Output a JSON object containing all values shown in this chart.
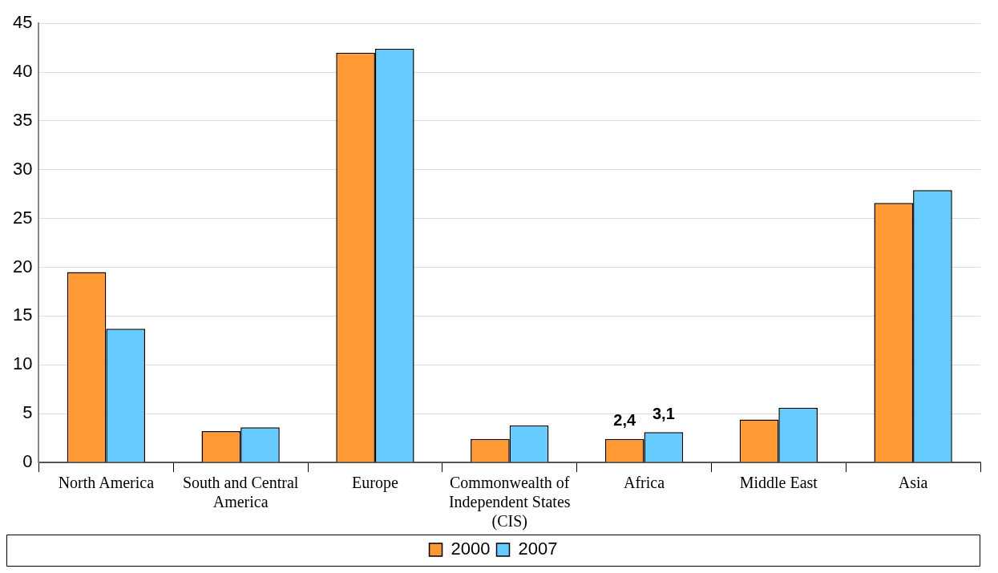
{
  "chart_data": {
    "type": "bar",
    "categories": [
      "North America",
      "South and Central America",
      "Europe",
      "Commonwealth of Independent States (CIS)",
      "Africa",
      "Middle East",
      "Asia"
    ],
    "series": [
      {
        "name": "2000",
        "color": "#ff9933",
        "values": [
          19.5,
          3.2,
          42.0,
          2.4,
          2.4,
          4.4,
          26.6
        ],
        "value_labels": [
          null,
          null,
          null,
          null,
          "2,4",
          null,
          null
        ]
      },
      {
        "name": "2007",
        "color": "#66ccff",
        "values": [
          13.7,
          3.6,
          42.4,
          3.8,
          3.1,
          5.6,
          27.9
        ],
        "value_labels": [
          null,
          null,
          null,
          null,
          "3,1",
          null,
          null
        ]
      }
    ],
    "ylim": [
      0,
      45
    ],
    "yticks": [
      0,
      5,
      10,
      15,
      20,
      25,
      30,
      35,
      40,
      45
    ],
    "grid": "y",
    "legend": "bottom"
  }
}
